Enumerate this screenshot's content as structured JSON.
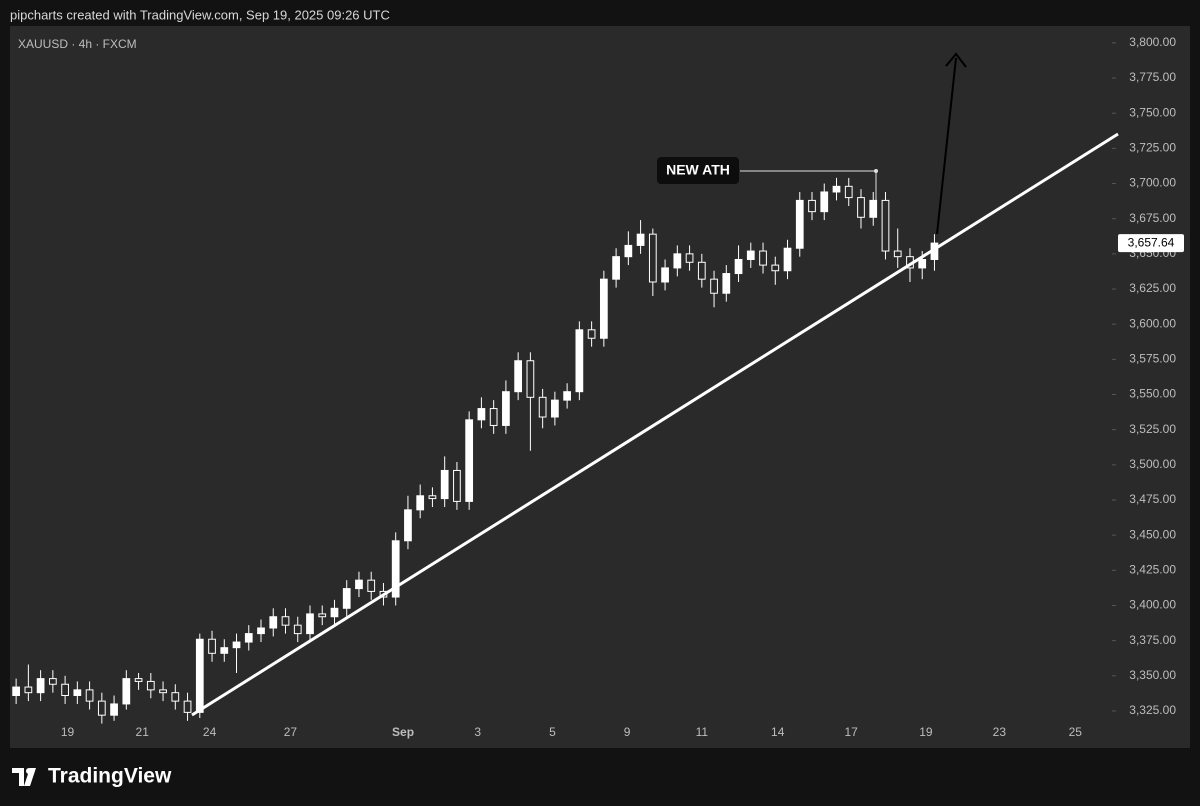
{
  "header": "pipcharts created with TradingView.com, Sep 19, 2025 09:26 UTC",
  "logo": "TradingView",
  "chart_data": {
    "type": "candlestick",
    "title": "XAUUSD · 4h · FXCM",
    "annotation": "NEW ATH",
    "last_price": {
      "value": 3657.64,
      "label": "3,657.64"
    },
    "xlim": [
      0,
      90
    ],
    "xticks": [
      {
        "value": 4.7,
        "label": "19"
      },
      {
        "value": 10.8,
        "label": "21"
      },
      {
        "value": 16.3,
        "label": "24"
      },
      {
        "value": 22.9,
        "label": "27"
      },
      {
        "value": 32.1,
        "label": "Sep"
      },
      {
        "value": 38.2,
        "label": "3"
      },
      {
        "value": 44.3,
        "label": "5"
      },
      {
        "value": 50.4,
        "label": "9"
      },
      {
        "value": 56.5,
        "label": "11"
      },
      {
        "value": 62.7,
        "label": "14"
      },
      {
        "value": 68.7,
        "label": "17"
      },
      {
        "value": 74.8,
        "label": "19"
      },
      {
        "value": 80.8,
        "label": "23"
      },
      {
        "value": 87.0,
        "label": "25"
      }
    ],
    "ylim": [
      3320,
      3812
    ],
    "yticks": [
      {
        "value": 3325,
        "label": "3,325.00"
      },
      {
        "value": 3350,
        "label": "3,350.00"
      },
      {
        "value": 3375,
        "label": "3,375.00"
      },
      {
        "value": 3400,
        "label": "3,400.00"
      },
      {
        "value": 3425,
        "label": "3,425.00"
      },
      {
        "value": 3450,
        "label": "3,450.00"
      },
      {
        "value": 3475,
        "label": "3,475.00"
      },
      {
        "value": 3500,
        "label": "3,500.00"
      },
      {
        "value": 3525,
        "label": "3,525.00"
      },
      {
        "value": 3550,
        "label": "3,550.00"
      },
      {
        "value": 3575,
        "label": "3,575.00"
      },
      {
        "value": 3600,
        "label": "3,600.00"
      },
      {
        "value": 3625,
        "label": "3,625.00"
      },
      {
        "value": 3650,
        "label": "3,650.00"
      },
      {
        "value": 3675,
        "label": "3,675.00"
      },
      {
        "value": 3700,
        "label": "3,700.00"
      },
      {
        "value": 3725,
        "label": "3,725.00"
      },
      {
        "value": 3750,
        "label": "3,750.00"
      },
      {
        "value": 3775,
        "label": "3,775.00"
      },
      {
        "value": 3800,
        "label": "3,800.00"
      }
    ],
    "up_color": "#ffffff",
    "down_color": "#2a2a2a",
    "open": [
      3336,
      3342,
      3338,
      3348,
      3344,
      3336,
      3340,
      3332,
      3322,
      3330,
      3348,
      3346,
      3340,
      3338,
      3332,
      3324,
      3376,
      3366,
      3370,
      3374,
      3380,
      3384,
      3392,
      3386,
      3380,
      3394,
      3392,
      3398,
      3412,
      3418,
      3410,
      3406,
      3446,
      3468,
      3478,
      3476,
      3496,
      3474,
      3532,
      3540,
      3528,
      3552,
      3574,
      3548,
      3534,
      3546,
      3552,
      3596,
      3590,
      3632,
      3648,
      3656,
      3664,
      3630,
      3640,
      3650,
      3644,
      3632,
      3622,
      3636,
      3646,
      3652,
      3642,
      3638,
      3654,
      3688,
      3680,
      3694,
      3698,
      3690,
      3676,
      3688,
      3652,
      3648,
      3640,
      3646
    ],
    "high": [
      3348,
      3358,
      3354,
      3354,
      3350,
      3346,
      3346,
      3338,
      3336,
      3354,
      3352,
      3352,
      3346,
      3344,
      3338,
      3380,
      3382,
      3376,
      3380,
      3386,
      3390,
      3398,
      3398,
      3392,
      3400,
      3400,
      3404,
      3418,
      3424,
      3424,
      3416,
      3452,
      3478,
      3486,
      3484,
      3506,
      3502,
      3538,
      3548,
      3546,
      3560,
      3580,
      3580,
      3554,
      3552,
      3558,
      3602,
      3602,
      3638,
      3654,
      3666,
      3674,
      3668,
      3646,
      3656,
      3656,
      3650,
      3638,
      3642,
      3656,
      3658,
      3658,
      3648,
      3660,
      3694,
      3694,
      3700,
      3704,
      3704,
      3696,
      3694,
      3694,
      3668,
      3654,
      3652,
      3664
    ],
    "low": [
      3330,
      3332,
      3332,
      3338,
      3330,
      3330,
      3326,
      3316,
      3318,
      3326,
      3340,
      3334,
      3332,
      3326,
      3318,
      3320,
      3360,
      3360,
      3352,
      3368,
      3374,
      3378,
      3380,
      3374,
      3374,
      3386,
      3386,
      3392,
      3406,
      3404,
      3400,
      3400,
      3440,
      3462,
      3470,
      3470,
      3468,
      3468,
      3526,
      3522,
      3522,
      3546,
      3510,
      3526,
      3528,
      3540,
      3546,
      3584,
      3584,
      3626,
      3642,
      3650,
      3620,
      3624,
      3634,
      3638,
      3626,
      3612,
      3616,
      3630,
      3640,
      3636,
      3628,
      3632,
      3648,
      3674,
      3674,
      3688,
      3684,
      3668,
      3670,
      3646,
      3640,
      3630,
      3632,
      3638
    ],
    "close": [
      3342,
      3338,
      3348,
      3344,
      3336,
      3340,
      3332,
      3322,
      3330,
      3348,
      3346,
      3340,
      3338,
      3332,
      3324,
      3376,
      3366,
      3370,
      3374,
      3380,
      3384,
      3392,
      3386,
      3380,
      3394,
      3392,
      3398,
      3412,
      3418,
      3410,
      3406,
      3446,
      3468,
      3478,
      3476,
      3496,
      3474,
      3532,
      3540,
      3528,
      3552,
      3574,
      3548,
      3534,
      3546,
      3552,
      3596,
      3590,
      3632,
      3648,
      3656,
      3664,
      3630,
      3640,
      3650,
      3644,
      3632,
      3622,
      3636,
      3646,
      3652,
      3642,
      3638,
      3654,
      3688,
      3680,
      3694,
      3698,
      3690,
      3676,
      3688,
      3652,
      3648,
      3640,
      3646,
      3657.64
    ]
  }
}
